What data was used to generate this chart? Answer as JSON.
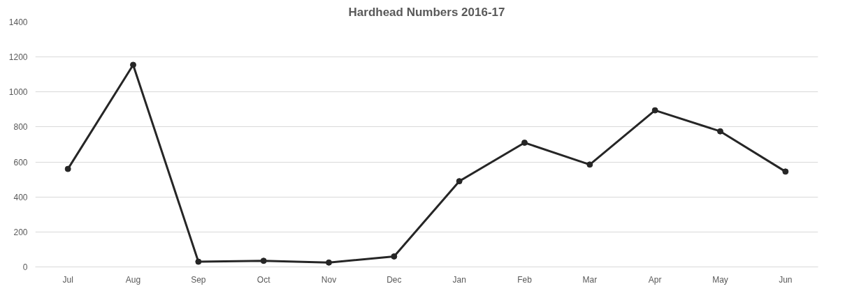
{
  "chart_data": {
    "type": "line",
    "title": "Hardhead Numbers 2016-17",
    "categories": [
      "Jul",
      "Aug",
      "Sep",
      "Oct",
      "Nov",
      "Dec",
      "Jan",
      "Feb",
      "Mar",
      "Apr",
      "May",
      "Jun"
    ],
    "series": [
      {
        "color": "#262626",
        "values": [
          560,
          1155,
          30,
          35,
          25,
          60,
          490,
          710,
          585,
          895,
          775,
          545
        ]
      }
    ],
    "ylim": [
      0,
      1400
    ],
    "yticks": [
      0,
      200,
      400,
      600,
      800,
      1000,
      1200,
      1400
    ],
    "grid": "y",
    "marker": "circle",
    "line_style": "solid"
  }
}
